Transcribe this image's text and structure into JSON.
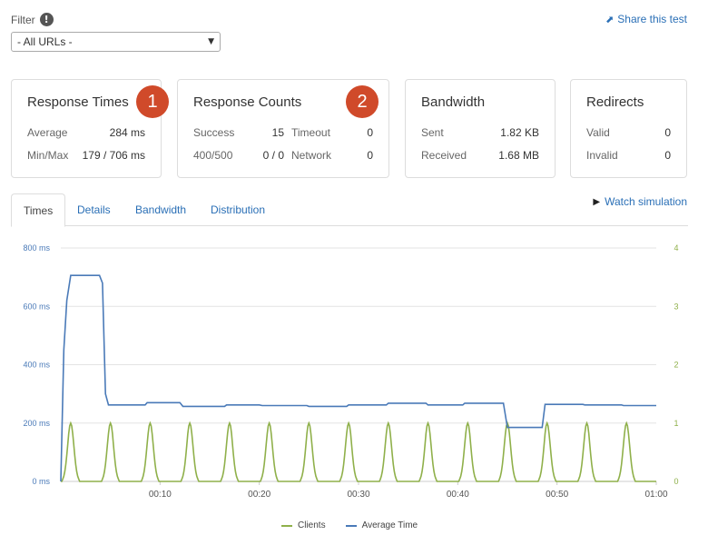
{
  "filter": {
    "label": "Filter",
    "info_glyph": "!",
    "selected": "- All URLs -"
  },
  "share": {
    "label": "Share this test",
    "icon": "share-icon"
  },
  "cards": {
    "response_times": {
      "title": "Response Times",
      "badge": "1",
      "rows": [
        {
          "label": "Average",
          "value": "284 ms"
        },
        {
          "label": "Min/Max",
          "value": "179 / 706 ms"
        }
      ]
    },
    "response_counts": {
      "title": "Response Counts",
      "badge": "2",
      "rows": [
        {
          "label": "Success",
          "value": "15",
          "label2": "Timeout",
          "value2": "0"
        },
        {
          "label": "400/500",
          "value": "0 / 0",
          "label2": "Network",
          "value2": "0"
        }
      ]
    },
    "bandwidth": {
      "title": "Bandwidth",
      "rows": [
        {
          "label": "Sent",
          "value": "1.82 KB"
        },
        {
          "label": "Received",
          "value": "1.68 MB"
        }
      ]
    },
    "redirects": {
      "title": "Redirects",
      "rows": [
        {
          "label": "Valid",
          "value": "0"
        },
        {
          "label": "Invalid",
          "value": "0"
        }
      ]
    }
  },
  "tabs": [
    "Times",
    "Details",
    "Bandwidth",
    "Distribution"
  ],
  "active_tab": "Times",
  "watch": {
    "label": "Watch simulation",
    "icon": "play-icon"
  },
  "colors": {
    "link": "#2a6fb6",
    "badge": "#d04a2a",
    "clients": "#8fb04a",
    "avg_time": "#4a7ab8",
    "grid": "#e3e3e3"
  },
  "chart_data": {
    "type": "line",
    "x_ticks": [
      "00:10",
      "00:20",
      "00:30",
      "00:40",
      "00:50",
      "01:00"
    ],
    "x_range": [
      0,
      60
    ],
    "y_left": {
      "ticks": [
        "0 ms",
        "200 ms",
        "400 ms",
        "600 ms",
        "800 ms"
      ],
      "range": [
        0,
        800
      ]
    },
    "y_right": {
      "ticks": [
        "0",
        "1",
        "2",
        "3",
        "4"
      ],
      "range": [
        0,
        4
      ]
    },
    "grid": true,
    "legend_position": "bottom-center",
    "series": [
      {
        "name": "Clients",
        "axis": "right",
        "pulse_centers": [
          1,
          5,
          9,
          13,
          17,
          21,
          25,
          29,
          33,
          37,
          41,
          45,
          49,
          53,
          57
        ],
        "pulse_peak": 1,
        "pulse_half_width": 1
      },
      {
        "name": "Average Time",
        "axis": "left",
        "x": [
          0,
          0.3,
          0.6,
          1,
          3.9,
          4.2,
          4.5,
          4.8,
          8.5,
          8.7,
          12,
          12.3,
          16.5,
          16.7,
          20,
          20.3,
          24.8,
          25,
          28.8,
          29,
          32.8,
          33,
          36.8,
          37,
          40.5,
          40.7,
          44.6,
          45,
          48.5,
          48.8,
          52.6,
          52.8,
          56.5,
          56.7,
          60
        ],
        "values": [
          0,
          450,
          620,
          706,
          706,
          680,
          300,
          262,
          262,
          270,
          270,
          257,
          257,
          262,
          262,
          260,
          260,
          257,
          257,
          262,
          262,
          268,
          268,
          262,
          262,
          268,
          268,
          185,
          185,
          264,
          264,
          262,
          262,
          260,
          260
        ]
      }
    ]
  }
}
